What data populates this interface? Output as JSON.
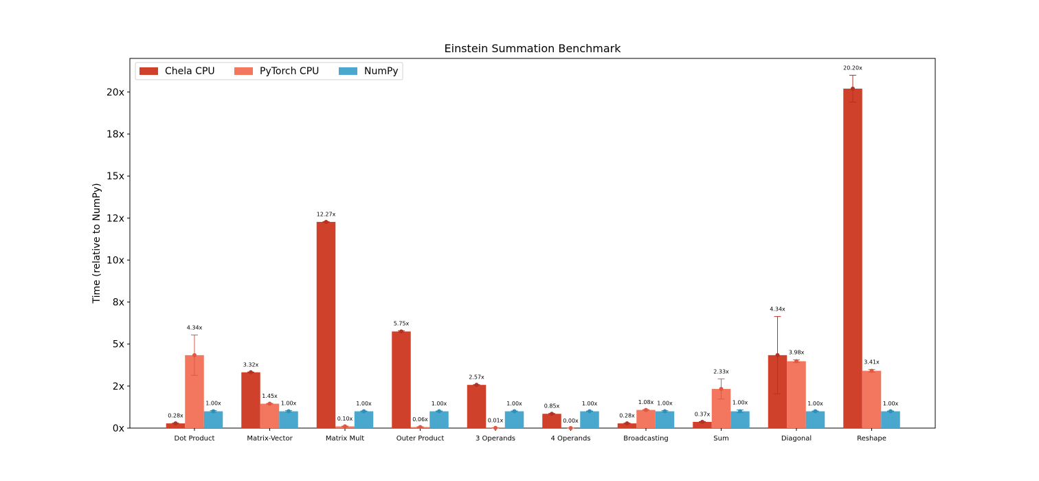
{
  "chart_data": {
    "type": "bar",
    "title": "Einstein Summation Benchmark",
    "xlabel": "",
    "ylabel": "Time (relative to NumPy)",
    "ylim": [
      0,
      22
    ],
    "yticks": [
      0,
      2.5,
      5,
      7.5,
      10,
      12.5,
      15,
      17.5,
      20
    ],
    "ytick_labels": [
      "0x",
      "2x",
      "5x",
      "8x",
      "10x",
      "12x",
      "15x",
      "18x",
      "20x"
    ],
    "grid": false,
    "legend_position": "top-left",
    "categories": [
      "Dot Product",
      "Matrix-Vector",
      "Matrix Mult",
      "Outer Product",
      "3 Operands",
      "4 Operands",
      "Broadcasting",
      "Sum",
      "Diagonal",
      "Reshape"
    ],
    "series": [
      {
        "name": "Chela CPU",
        "color": "#cf412b",
        "error_color": "#b5321f",
        "values": [
          0.28,
          3.32,
          12.27,
          5.75,
          2.57,
          0.85,
          0.28,
          0.37,
          4.34,
          20.2
        ],
        "errors": [
          0.02,
          0.02,
          0.02,
          0.04,
          0.02,
          0.02,
          0.02,
          0.02,
          2.3,
          0.8
        ],
        "labels": [
          "0.28x",
          "3.32x",
          "12.27x",
          "5.75x",
          "2.57x",
          "0.85x",
          "0.28x",
          "0.37x",
          "4.34x",
          "20.20x"
        ]
      },
      {
        "name": "PyTorch CPU",
        "color": "#f2775e",
        "error_color": "#e0583f",
        "values": [
          4.34,
          1.45,
          0.1,
          0.06,
          0.01,
          0.0,
          1.08,
          2.33,
          3.98,
          3.41
        ],
        "errors": [
          1.2,
          0.02,
          0.02,
          0.02,
          0.01,
          0.01,
          0.02,
          0.6,
          0.08,
          0.08
        ],
        "labels": [
          "4.34x",
          "1.45x",
          "0.10x",
          "0.06x",
          "0.01x",
          "0.00x",
          "1.08x",
          "2.33x",
          "3.98x",
          "3.41x"
        ]
      },
      {
        "name": "NumPy",
        "color": "#4aa8cf",
        "error_color": "#2f8fb8",
        "values": [
          1.0,
          1.0,
          1.0,
          1.0,
          1.0,
          1.0,
          1.0,
          1.0,
          1.0,
          1.0
        ],
        "errors": [
          0.04,
          0.04,
          0.02,
          0.02,
          0.02,
          0.02,
          0.04,
          0.08,
          0.02,
          0.02
        ],
        "labels": [
          "1.00x",
          "1.00x",
          "1.00x",
          "1.00x",
          "1.00x",
          "1.00x",
          "1.00x",
          "1.00x",
          "1.00x",
          "1.00x"
        ]
      }
    ]
  }
}
